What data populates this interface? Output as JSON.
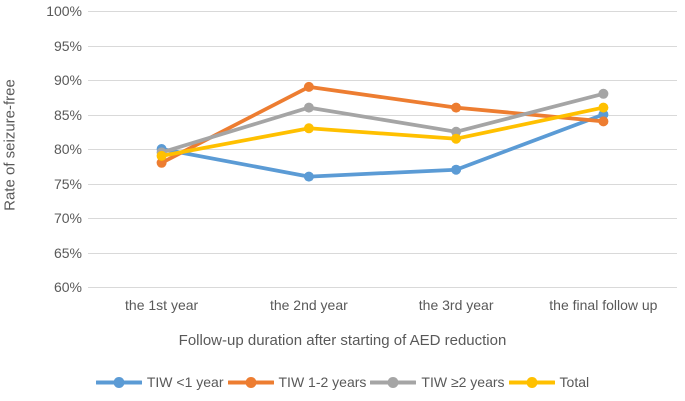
{
  "chart_data": {
    "type": "line",
    "title": "",
    "categories": [
      "the 1st year",
      "the 2nd year",
      "the 3rd year",
      "the final follow up"
    ],
    "series": [
      {
        "name": "TIW <1 year",
        "color": "#5B9BD5",
        "values": [
          80,
          76,
          77,
          85
        ]
      },
      {
        "name": "TIW 1-2 years",
        "color": "#ED7D31",
        "values": [
          78,
          89,
          86,
          84
        ]
      },
      {
        "name": "TIW ≥2 years",
        "color": "#A5A5A5",
        "values": [
          79.5,
          86,
          82.5,
          88
        ]
      },
      {
        "name": "Total",
        "color": "#FFC000",
        "values": [
          79,
          83,
          81.5,
          86
        ]
      }
    ],
    "xlabel": "Follow-up duration after starting of AED reduction",
    "ylabel": "Rate of seizure-free",
    "ylim": [
      60,
      100
    ],
    "ytick_step": 5,
    "ytick_suffix": "%",
    "grid": true,
    "gridline_color": "#d9d9d9",
    "text_color": "#595959",
    "legend_position": "bottom",
    "marker": "circle"
  }
}
